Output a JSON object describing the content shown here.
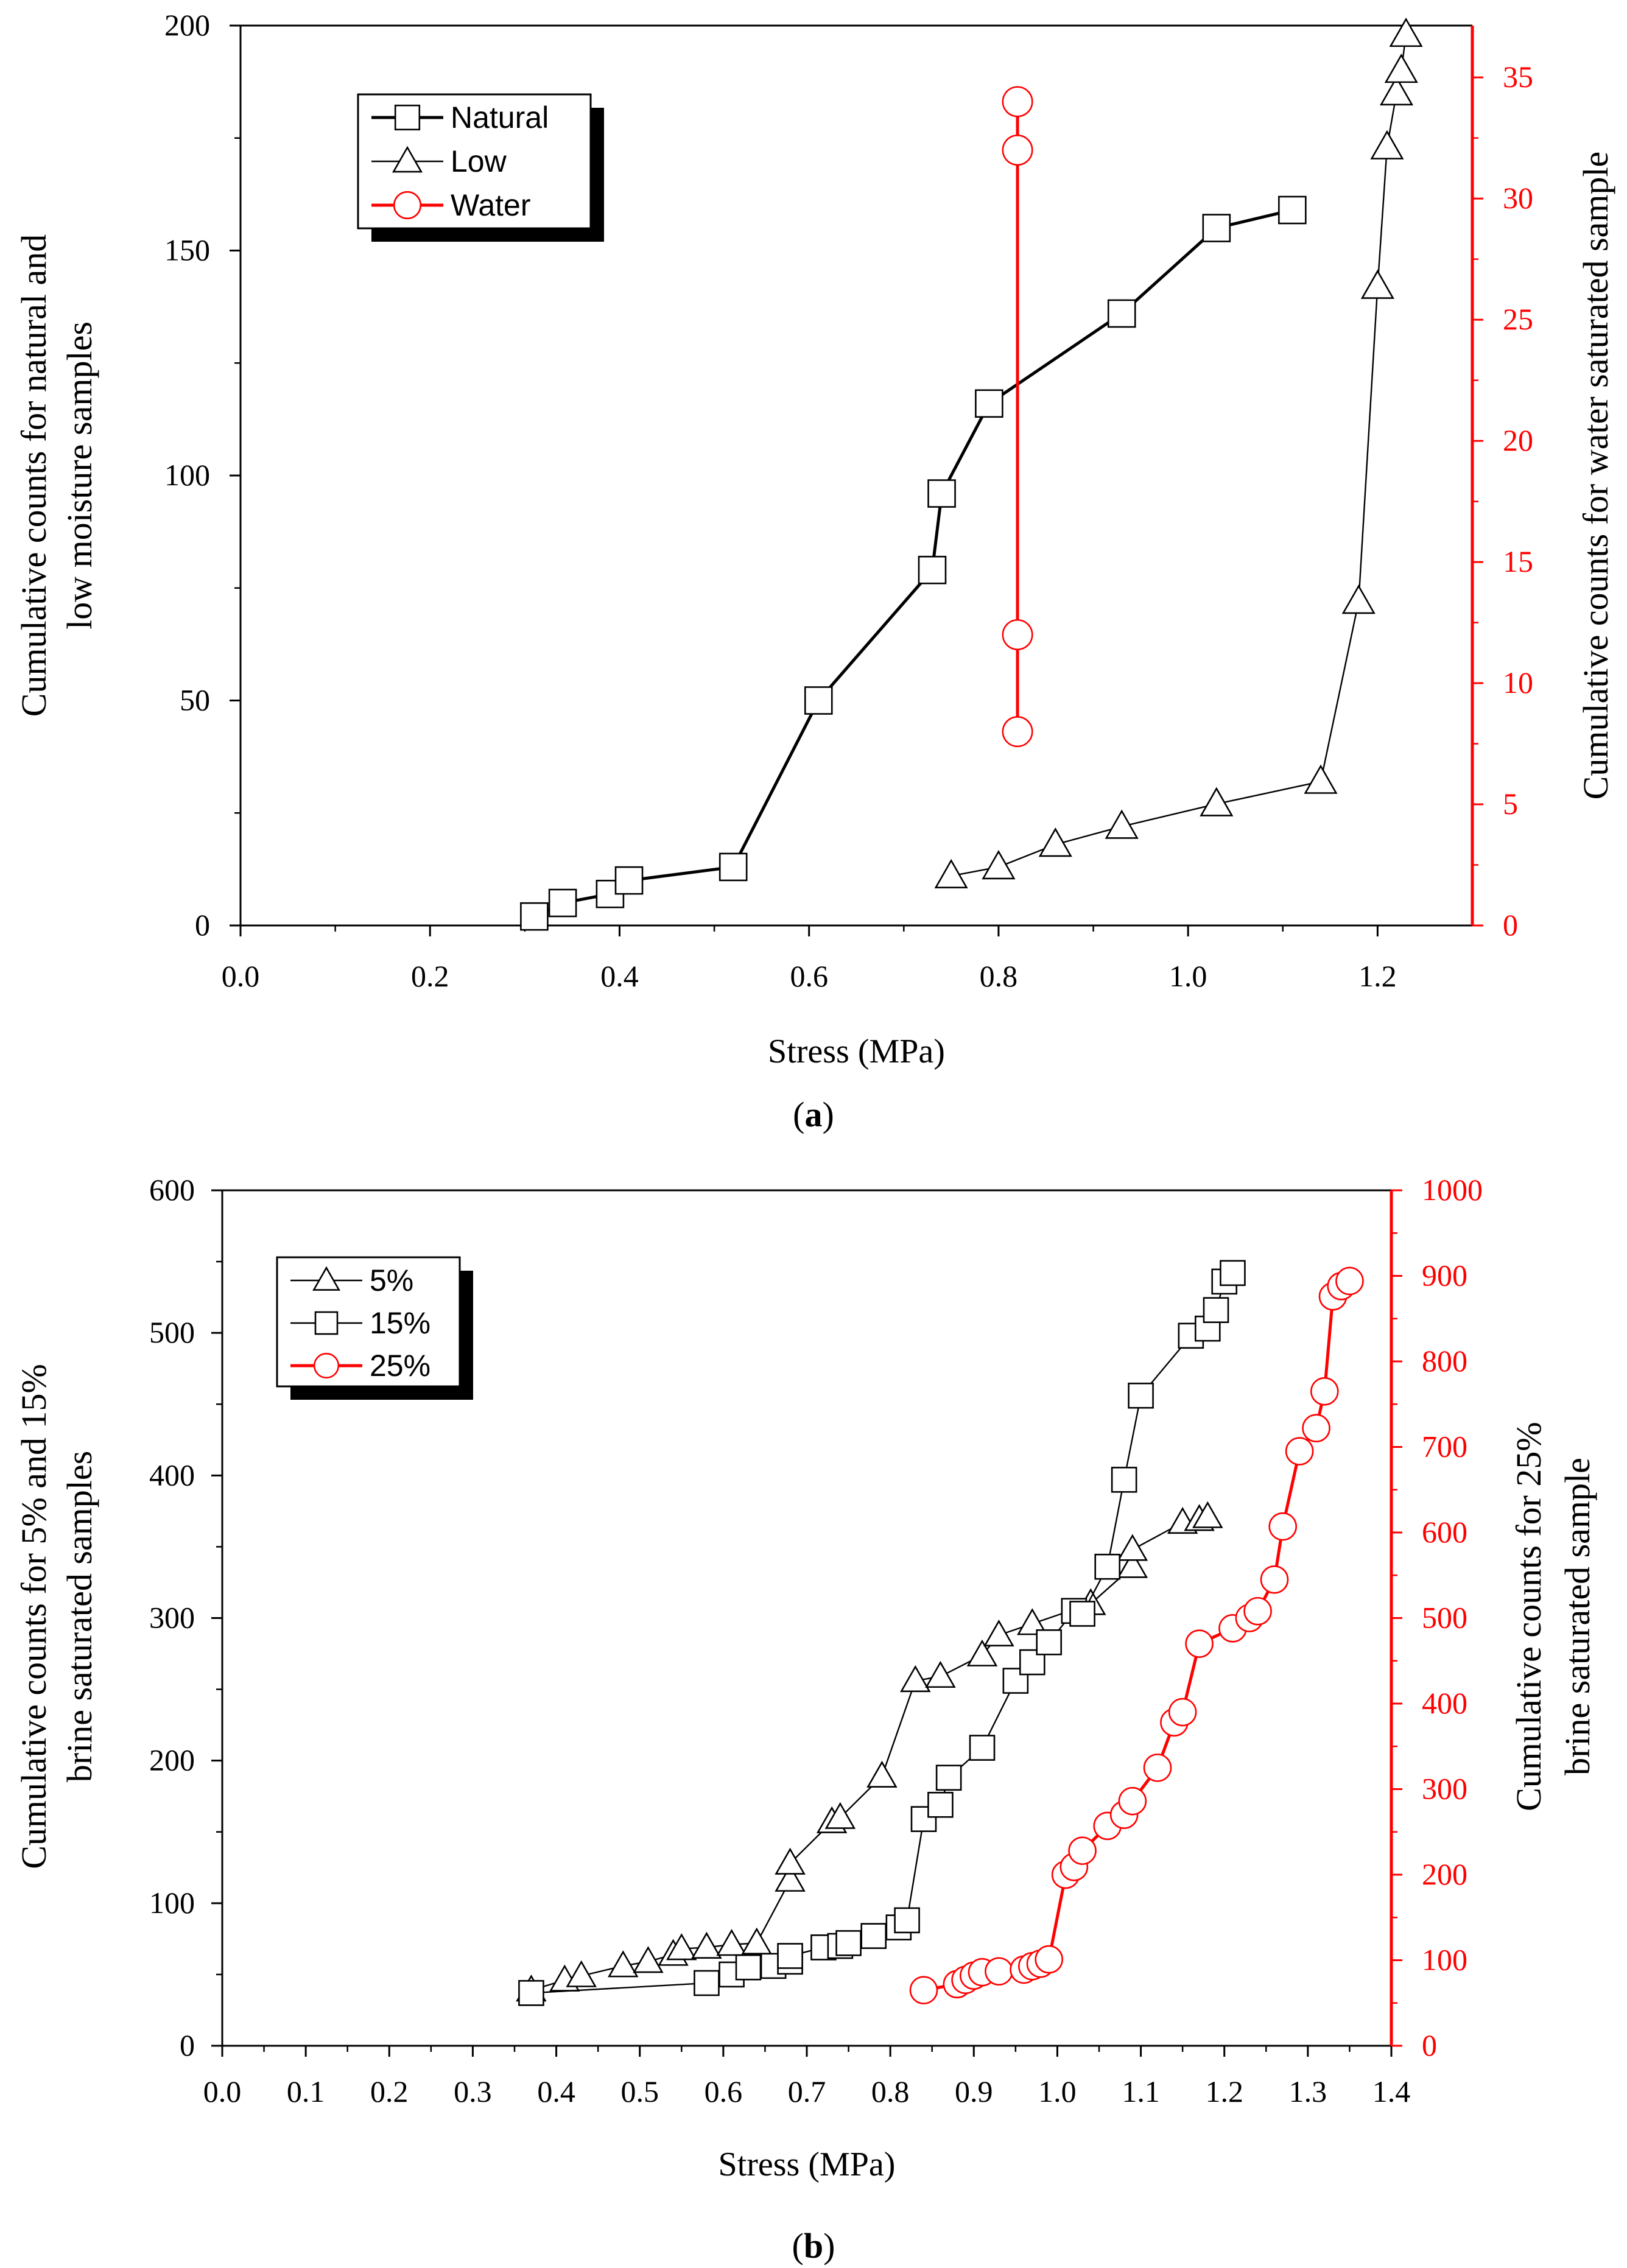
{
  "chart_data": [
    {
      "type": "line",
      "panel_label": "a",
      "xlabel": "Stress (MPa)",
      "ylabel_left": [
        "Cumulative counts for natural and",
        "low moisture samples"
      ],
      "ylabel_right": [
        "Cumulative counts for water saturated sample"
      ],
      "xlim": [
        0.0,
        1.3
      ],
      "ylim_left": [
        0,
        200
      ],
      "ylim_right": [
        0,
        37.14
      ],
      "x_ticks": [
        0.0,
        0.2,
        0.4,
        0.6,
        0.8,
        1.0,
        1.2
      ],
      "x_tick_labels": [
        "0.0",
        "0.2",
        "0.4",
        "0.6",
        "0.8",
        "1.0",
        "1.2"
      ],
      "y_left_ticks": [
        0,
        50,
        100,
        150,
        200
      ],
      "y_left_tick_labels": [
        "0",
        "50",
        "100",
        "150",
        "200"
      ],
      "y_right_ticks": [
        0,
        5,
        10,
        15,
        20,
        25,
        30,
        35
      ],
      "y_right_tick_labels": [
        "0",
        "5",
        "10",
        "15",
        "20",
        "25",
        "30",
        "35"
      ],
      "grid": false,
      "legend_position": "top-left",
      "series": [
        {
          "name": "Natural",
          "axis": "left",
          "marker": "square",
          "color": "#000000",
          "line_style": "thick",
          "x": [
            0.31,
            0.34,
            0.39,
            0.41,
            0.52,
            0.61,
            0.73,
            0.74,
            0.79,
            0.93,
            1.03,
            1.11
          ],
          "y": [
            2,
            5,
            7,
            10,
            13,
            50,
            79,
            96,
            116,
            136,
            155,
            159
          ]
        },
        {
          "name": "Low",
          "axis": "left",
          "marker": "triangle",
          "color": "#000000",
          "line_style": "thin",
          "x": [
            0.75,
            0.8,
            0.86,
            0.93,
            1.03,
            1.14,
            1.18,
            1.2,
            1.21,
            1.22,
            1.225,
            1.23
          ],
          "y": [
            11,
            13,
            18,
            22,
            27,
            32,
            72,
            142,
            173,
            185,
            190,
            198
          ]
        },
        {
          "name": "Water",
          "axis": "right",
          "marker": "circle",
          "color": "#ff0000",
          "line_style": "thick",
          "x": [
            0.82,
            0.82,
            0.82,
            0.82
          ],
          "y": [
            8,
            12,
            32,
            34
          ]
        }
      ]
    },
    {
      "type": "line",
      "panel_label": "b",
      "xlabel": "Stress (MPa)",
      "ylabel_left": [
        "Cumulative counts for 5% and 15%",
        "brine saturated samples"
      ],
      "ylabel_right": [
        "Cumulative counts for 25%",
        "brine saturated sample"
      ],
      "xlim": [
        0.0,
        1.4
      ],
      "ylim_left": [
        0,
        600
      ],
      "ylim_right": [
        0,
        1000
      ],
      "x_ticks": [
        0.0,
        0.1,
        0.2,
        0.3,
        0.4,
        0.5,
        0.6,
        0.7,
        0.8,
        0.9,
        1.0,
        1.1,
        1.2,
        1.3,
        1.4
      ],
      "x_tick_labels": [
        "0.0",
        "0.1",
        "0.2",
        "0.3",
        "0.4",
        "0.5",
        "0.6",
        "0.7",
        "0.8",
        "0.9",
        "1.0",
        "1.1",
        "1.2",
        "1.3",
        "1.4"
      ],
      "y_left_ticks": [
        0,
        100,
        200,
        300,
        400,
        500,
        600
      ],
      "y_left_tick_labels": [
        "0",
        "100",
        "200",
        "300",
        "400",
        "500",
        "600"
      ],
      "y_right_ticks": [
        0,
        100,
        200,
        300,
        400,
        500,
        600,
        700,
        800,
        900,
        1000
      ],
      "y_right_tick_labels": [
        "0",
        "100",
        "200",
        "300",
        "400",
        "500",
        "600",
        "700",
        "800",
        "900",
        "1000"
      ],
      "grid": false,
      "legend_position": "top-left",
      "series": [
        {
          "name": "5%",
          "axis": "left",
          "marker": "triangle",
          "color": "#000000",
          "line_style": "thin",
          "x": [
            0.37,
            0.41,
            0.43,
            0.48,
            0.51,
            0.54,
            0.55,
            0.58,
            0.61,
            0.64,
            0.68,
            0.68,
            0.73,
            0.74,
            0.79,
            0.83,
            0.86,
            0.91,
            0.93,
            0.97,
            1.04,
            1.09,
            1.09,
            1.15,
            1.17,
            1.18
          ],
          "y": [
            39,
            46,
            49,
            56,
            59,
            64,
            68,
            69,
            71,
            72,
            116,
            128,
            157,
            160,
            189,
            256,
            259,
            274,
            288,
            296,
            310,
            336,
            348,
            367,
            369,
            371
          ]
        },
        {
          "name": "15%",
          "axis": "left",
          "marker": "square",
          "color": "#000000",
          "line_style": "thin",
          "x": [
            0.37,
            0.58,
            0.61,
            0.63,
            0.66,
            0.68,
            0.68,
            0.72,
            0.74,
            0.75,
            0.78,
            0.81,
            0.82,
            0.84,
            0.86,
            0.87,
            0.91,
            0.95,
            0.97,
            0.99,
            1.02,
            1.03,
            1.06,
            1.08,
            1.1,
            1.16,
            1.18,
            1.19,
            1.2,
            1.21
          ],
          "y": [
            37,
            44,
            50,
            55,
            56,
            59,
            63,
            69,
            70,
            72,
            77,
            83,
            88,
            159,
            169,
            188,
            209,
            256,
            269,
            283,
            305,
            303,
            336,
            397,
            456,
            498,
            503,
            516,
            536,
            542
          ]
        },
        {
          "name": "25%",
          "axis": "right",
          "marker": "circle",
          "color": "#ff0000",
          "line_style": "thick",
          "x": [
            0.84,
            0.88,
            0.89,
            0.9,
            0.91,
            0.93,
            0.96,
            0.97,
            0.98,
            0.99,
            1.01,
            1.02,
            1.03,
            1.06,
            1.08,
            1.09,
            1.12,
            1.14,
            1.15,
            1.17,
            1.21,
            1.23,
            1.24,
            1.26,
            1.27,
            1.29,
            1.31,
            1.32,
            1.33,
            1.34,
            1.35
          ],
          "y": [
            65,
            72,
            77,
            82,
            86,
            87,
            89,
            93,
            96,
            101,
            200,
            209,
            228,
            257,
            270,
            286,
            325,
            378,
            390,
            470,
            488,
            500,
            508,
            545,
            607,
            695,
            722,
            765,
            876,
            888,
            894
          ]
        }
      ]
    }
  ]
}
